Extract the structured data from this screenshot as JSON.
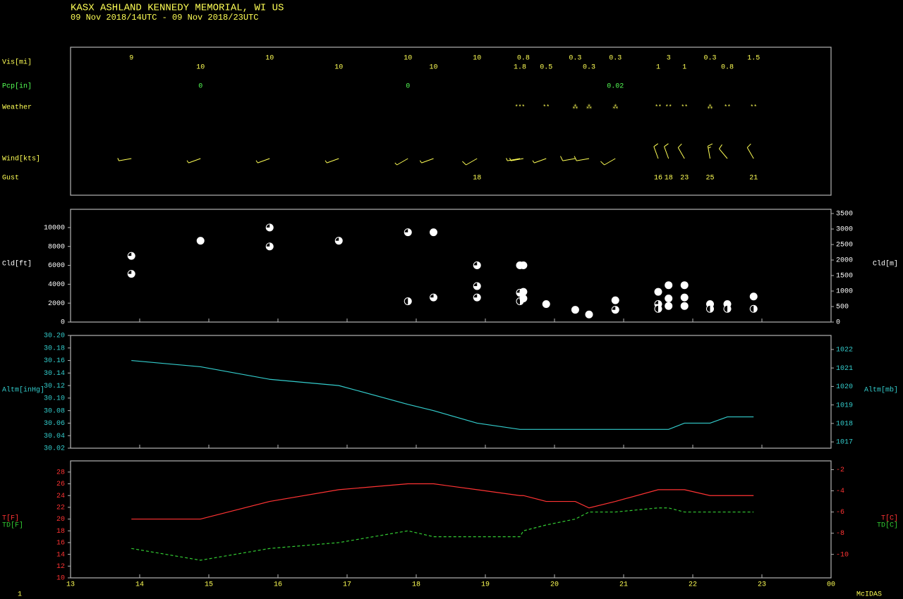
{
  "header": {
    "title": "KASX  ASHLAND KENNEDY MEMORIAL, WI US",
    "subtitle": "09 Nov 2018/14UTC - 09 Nov 2018/23UTC"
  },
  "footer": {
    "page": "1",
    "brand": "McIDAS"
  },
  "chart_data": [
    {
      "type": "station-obs",
      "x": [
        13.88,
        14.88,
        15.88,
        16.88,
        17.88,
        18.25,
        18.88,
        19.5,
        19.55,
        19.88,
        20.3,
        20.5,
        20.88,
        21.5,
        21.65,
        21.88,
        22.25,
        22.5,
        22.88
      ],
      "xlim": [
        13,
        24
      ],
      "xticks": [
        13,
        14,
        15,
        16,
        17,
        18,
        19,
        20,
        21,
        22,
        23,
        {
          "value": 24,
          "label": "00"
        }
      ],
      "rows": [
        {
          "name": "Vis[mi]",
          "color": "#ffff55",
          "values": [
            9,
            10,
            10,
            10,
            10,
            10,
            10,
            1.8,
            0.8,
            0.5,
            0.3,
            0.3,
            0.3,
            1,
            3,
            1,
            0.3,
            0.8,
            1.5
          ]
        },
        {
          "name": "Pcp[in]",
          "color": "#55ff55",
          "values": [
            null,
            0,
            null,
            null,
            0,
            null,
            null,
            null,
            null,
            null,
            null,
            null,
            0.02,
            null,
            null,
            null,
            null,
            null,
            null
          ]
        },
        {
          "name": "Weather",
          "color": "#ffff55",
          "values": [
            null,
            null,
            null,
            null,
            null,
            null,
            null,
            "***",
            null,
            "**",
            "⁂",
            "⁂",
            "⁂",
            "**",
            "**",
            "**",
            "⁂",
            "**",
            "**"
          ]
        },
        {
          "name": "Wind[kts]",
          "color": "#ffff55",
          "values": [
            8,
            8,
            8,
            8,
            8,
            8,
            10,
            8,
            8,
            8,
            10,
            10,
            10,
            12,
            12,
            13,
            15,
            14,
            13
          ],
          "directions": [
            260,
            250,
            250,
            250,
            240,
            250,
            240,
            260,
            260,
            250,
            260,
            260,
            240,
            340,
            340,
            330,
            350,
            320,
            330
          ]
        },
        {
          "name": "Gust",
          "color": "#ffff55",
          "values": [
            null,
            null,
            null,
            null,
            null,
            null,
            18,
            null,
            null,
            null,
            null,
            null,
            null,
            16,
            18,
            23,
            25,
            null,
            21
          ]
        }
      ]
    },
    {
      "type": "scatter",
      "ylabel": "Cld[ft]",
      "y2label": "Cld[m]",
      "color": "#ffffff",
      "x": [
        13.88,
        13.88,
        14.88,
        15.88,
        15.88,
        16.88,
        17.88,
        17.88,
        18.25,
        18.25,
        18.88,
        18.88,
        18.88,
        19.5,
        19.5,
        19.5,
        19.55,
        19.55,
        19.55,
        19.88,
        20.3,
        20.5,
        20.88,
        20.88,
        21.5,
        21.5,
        21.5,
        21.65,
        21.65,
        21.65,
        21.88,
        21.88,
        21.88,
        22.25,
        22.25,
        22.5,
        22.5,
        22.88,
        22.88
      ],
      "values": [
        7000,
        5100,
        8600,
        10000,
        8000,
        8600,
        9500,
        2200,
        9500,
        2600,
        6000,
        3800,
        2600,
        6000,
        3100,
        2200,
        6000,
        3200,
        2500,
        1900,
        1300,
        800,
        2300,
        1300,
        3200,
        1900,
        1400,
        3900,
        2500,
        1700,
        3900,
        2600,
        1700,
        1900,
        1400,
        1900,
        1400,
        2700,
        1400
      ],
      "cover": [
        0.75,
        0.75,
        1,
        0.75,
        0.75,
        0.75,
        0.75,
        0.5,
        1,
        0.75,
        0.75,
        0.75,
        0.75,
        1,
        0.75,
        0.5,
        1,
        1,
        1,
        1,
        1,
        1,
        1,
        0.75,
        1,
        0.75,
        0.5,
        1,
        1,
        1,
        1,
        1,
        1,
        1,
        0.5,
        1,
        0.5,
        1,
        0.5
      ],
      "ylim": [
        0,
        11930
      ],
      "yticks": [
        0,
        2000,
        4000,
        6000,
        8000,
        10000
      ],
      "y2lim": [
        0,
        3636
      ],
      "y2ticks": [
        0,
        500,
        1000,
        1500,
        2000,
        2500,
        3000,
        3500
      ]
    },
    {
      "type": "line",
      "ylabel": "Altm[inHg]",
      "y2label": "Altm[mb]",
      "color": "#33cccc",
      "values": [
        30.16,
        30.15,
        30.13,
        30.12,
        30.09,
        30.08,
        30.06,
        30.05,
        30.05,
        30.05,
        30.05,
        30.05,
        30.05,
        30.05,
        30.05,
        30.06,
        30.06,
        30.07,
        30.07
      ],
      "ylim": [
        30.02,
        30.2
      ],
      "yticks": [
        30.02,
        30.04,
        30.06,
        30.08,
        {
          "value": 30.1,
          "label": "30.10"
        },
        30.12,
        30.14,
        30.16,
        30.18,
        {
          "value": 30.2,
          "label": "30.20"
        }
      ],
      "y2lim": [
        1016.66,
        1022.76
      ],
      "y2ticks": [
        1017,
        1018,
        1019,
        1020,
        1021,
        1022
      ]
    },
    {
      "type": "line",
      "series": [
        {
          "name": "T[F]",
          "y2name": "T[C]",
          "color": "#ff3333",
          "values": [
            20,
            20,
            23,
            25,
            26,
            26,
            25,
            24,
            24,
            23,
            23,
            21.9,
            23,
            25,
            25,
            25,
            24,
            24,
            24
          ]
        },
        {
          "name": "TD[F]",
          "y2name": "TD[C]",
          "color": "#33cc33",
          "dashed": true,
          "values": [
            15,
            13,
            15,
            16,
            18,
            17,
            17,
            17,
            18,
            19,
            20,
            21.2,
            21.2,
            21.9,
            21.9,
            21.2,
            21.2,
            21.2,
            21.2
          ]
        }
      ],
      "ylim": [
        10,
        29.9
      ],
      "yticks": [
        10,
        12,
        14,
        16,
        18,
        20,
        22,
        24,
        26,
        28
      ],
      "y2lim": [
        -12.22,
        -1.17
      ],
      "y2ticks": [
        -10,
        -8,
        -6,
        -4,
        -2
      ]
    }
  ]
}
